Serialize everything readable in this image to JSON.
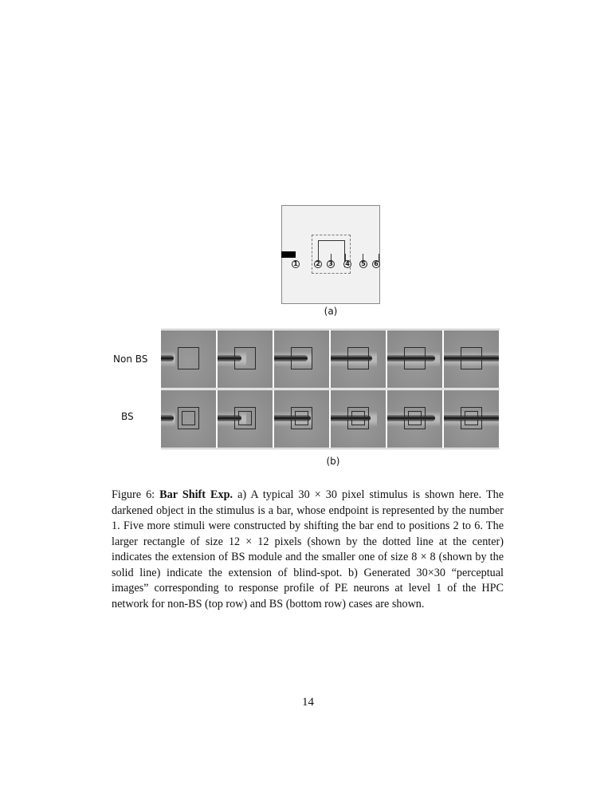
{
  "figure": {
    "panel_a": {
      "positions": [
        "1",
        "2",
        "3",
        "4",
        "5",
        "6"
      ],
      "label": "(a)"
    },
    "panel_b": {
      "rows": [
        {
          "label": "Non BS",
          "frames": 6
        },
        {
          "label": "BS",
          "frames": 6
        }
      ],
      "label": "(b)"
    },
    "caption": {
      "prefix": "Figure 6: ",
      "title": "Bar Shift Exp.",
      "text": " a) A typical 30 × 30 pixel stimulus is shown here. The darkened object in the stimulus is a bar, whose endpoint is represented by the number 1. Five more stimuli were constructed by shifting the bar end to positions 2 to 6. The larger rectangle of size 12 × 12 pixels (shown by the dotted line at the center) indicates the extension of BS module and the smaller one of size 8 × 8 (shown by the solid line) indicate the extension of blind-spot. b) Generated 30×30 “perceptual images” corresponding to response profile of PE neurons at level 1 of the HPC network for non-BS (top row) and BS (bottom row) cases are shown."
    }
  },
  "page_number": "14"
}
